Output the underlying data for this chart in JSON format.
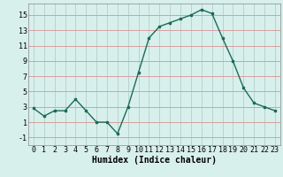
{
  "x": [
    0,
    1,
    2,
    3,
    4,
    5,
    6,
    7,
    8,
    9,
    10,
    11,
    12,
    13,
    14,
    15,
    16,
    17,
    18,
    19,
    20,
    21,
    22,
    23
  ],
  "y": [
    2.8,
    1.8,
    2.5,
    2.5,
    4.0,
    2.5,
    1.0,
    1.0,
    -0.5,
    3.0,
    7.5,
    12.0,
    13.5,
    14.0,
    14.5,
    15.0,
    15.7,
    15.2,
    12.0,
    9.0,
    5.5,
    3.5,
    3.0,
    2.5
  ],
  "line_color": "#1a6b5a",
  "marker": "s",
  "markersize": 2.0,
  "linewidth": 1.0,
  "bg_color": "#d8f0ec",
  "grid_color_h": "#d4a0a0",
  "grid_color_v": "#b8d4d0",
  "xlabel": "Humidex (Indice chaleur)",
  "xlabel_fontsize": 7,
  "tick_fontsize": 6,
  "yticks": [
    -1,
    1,
    3,
    5,
    7,
    9,
    11,
    13,
    15
  ],
  "ylim": [
    -2.0,
    16.5
  ],
  "xlim": [
    -0.5,
    23.5
  ]
}
